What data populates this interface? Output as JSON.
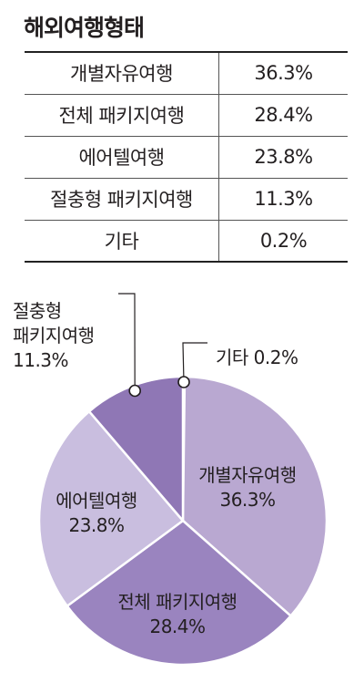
{
  "chart_data": {
    "type": "pie",
    "title": "해외여행형태",
    "slices": [
      {
        "label": "개별자유여행",
        "value": 36.3,
        "display": "36.3%",
        "color": "#b9a8d1"
      },
      {
        "label": "전체 패키지여행",
        "value": 28.4,
        "display": "28.4%",
        "color": "#9a84bf"
      },
      {
        "label": "에어텔여행",
        "value": 23.8,
        "display": "23.8%",
        "color": "#c9bedf"
      },
      {
        "label": "절충형 패키지여행",
        "value": 11.3,
        "display": "11.3%",
        "color": "#8f77b5"
      },
      {
        "label": "기타",
        "value": 0.2,
        "display": "0.2%",
        "color": "#c9bedf"
      }
    ],
    "pie_labels": [
      {
        "lines": [
          "개별자유여행",
          "36.3%"
        ]
      },
      {
        "lines": [
          "전체 패키지여행",
          "28.4%"
        ]
      },
      {
        "lines": [
          "에어텔여행",
          "23.8%"
        ]
      },
      {
        "lines": [
          "절충형",
          "패키지여행",
          "11.3%"
        ]
      },
      {
        "lines": [
          "기타 0.2%"
        ]
      }
    ]
  }
}
